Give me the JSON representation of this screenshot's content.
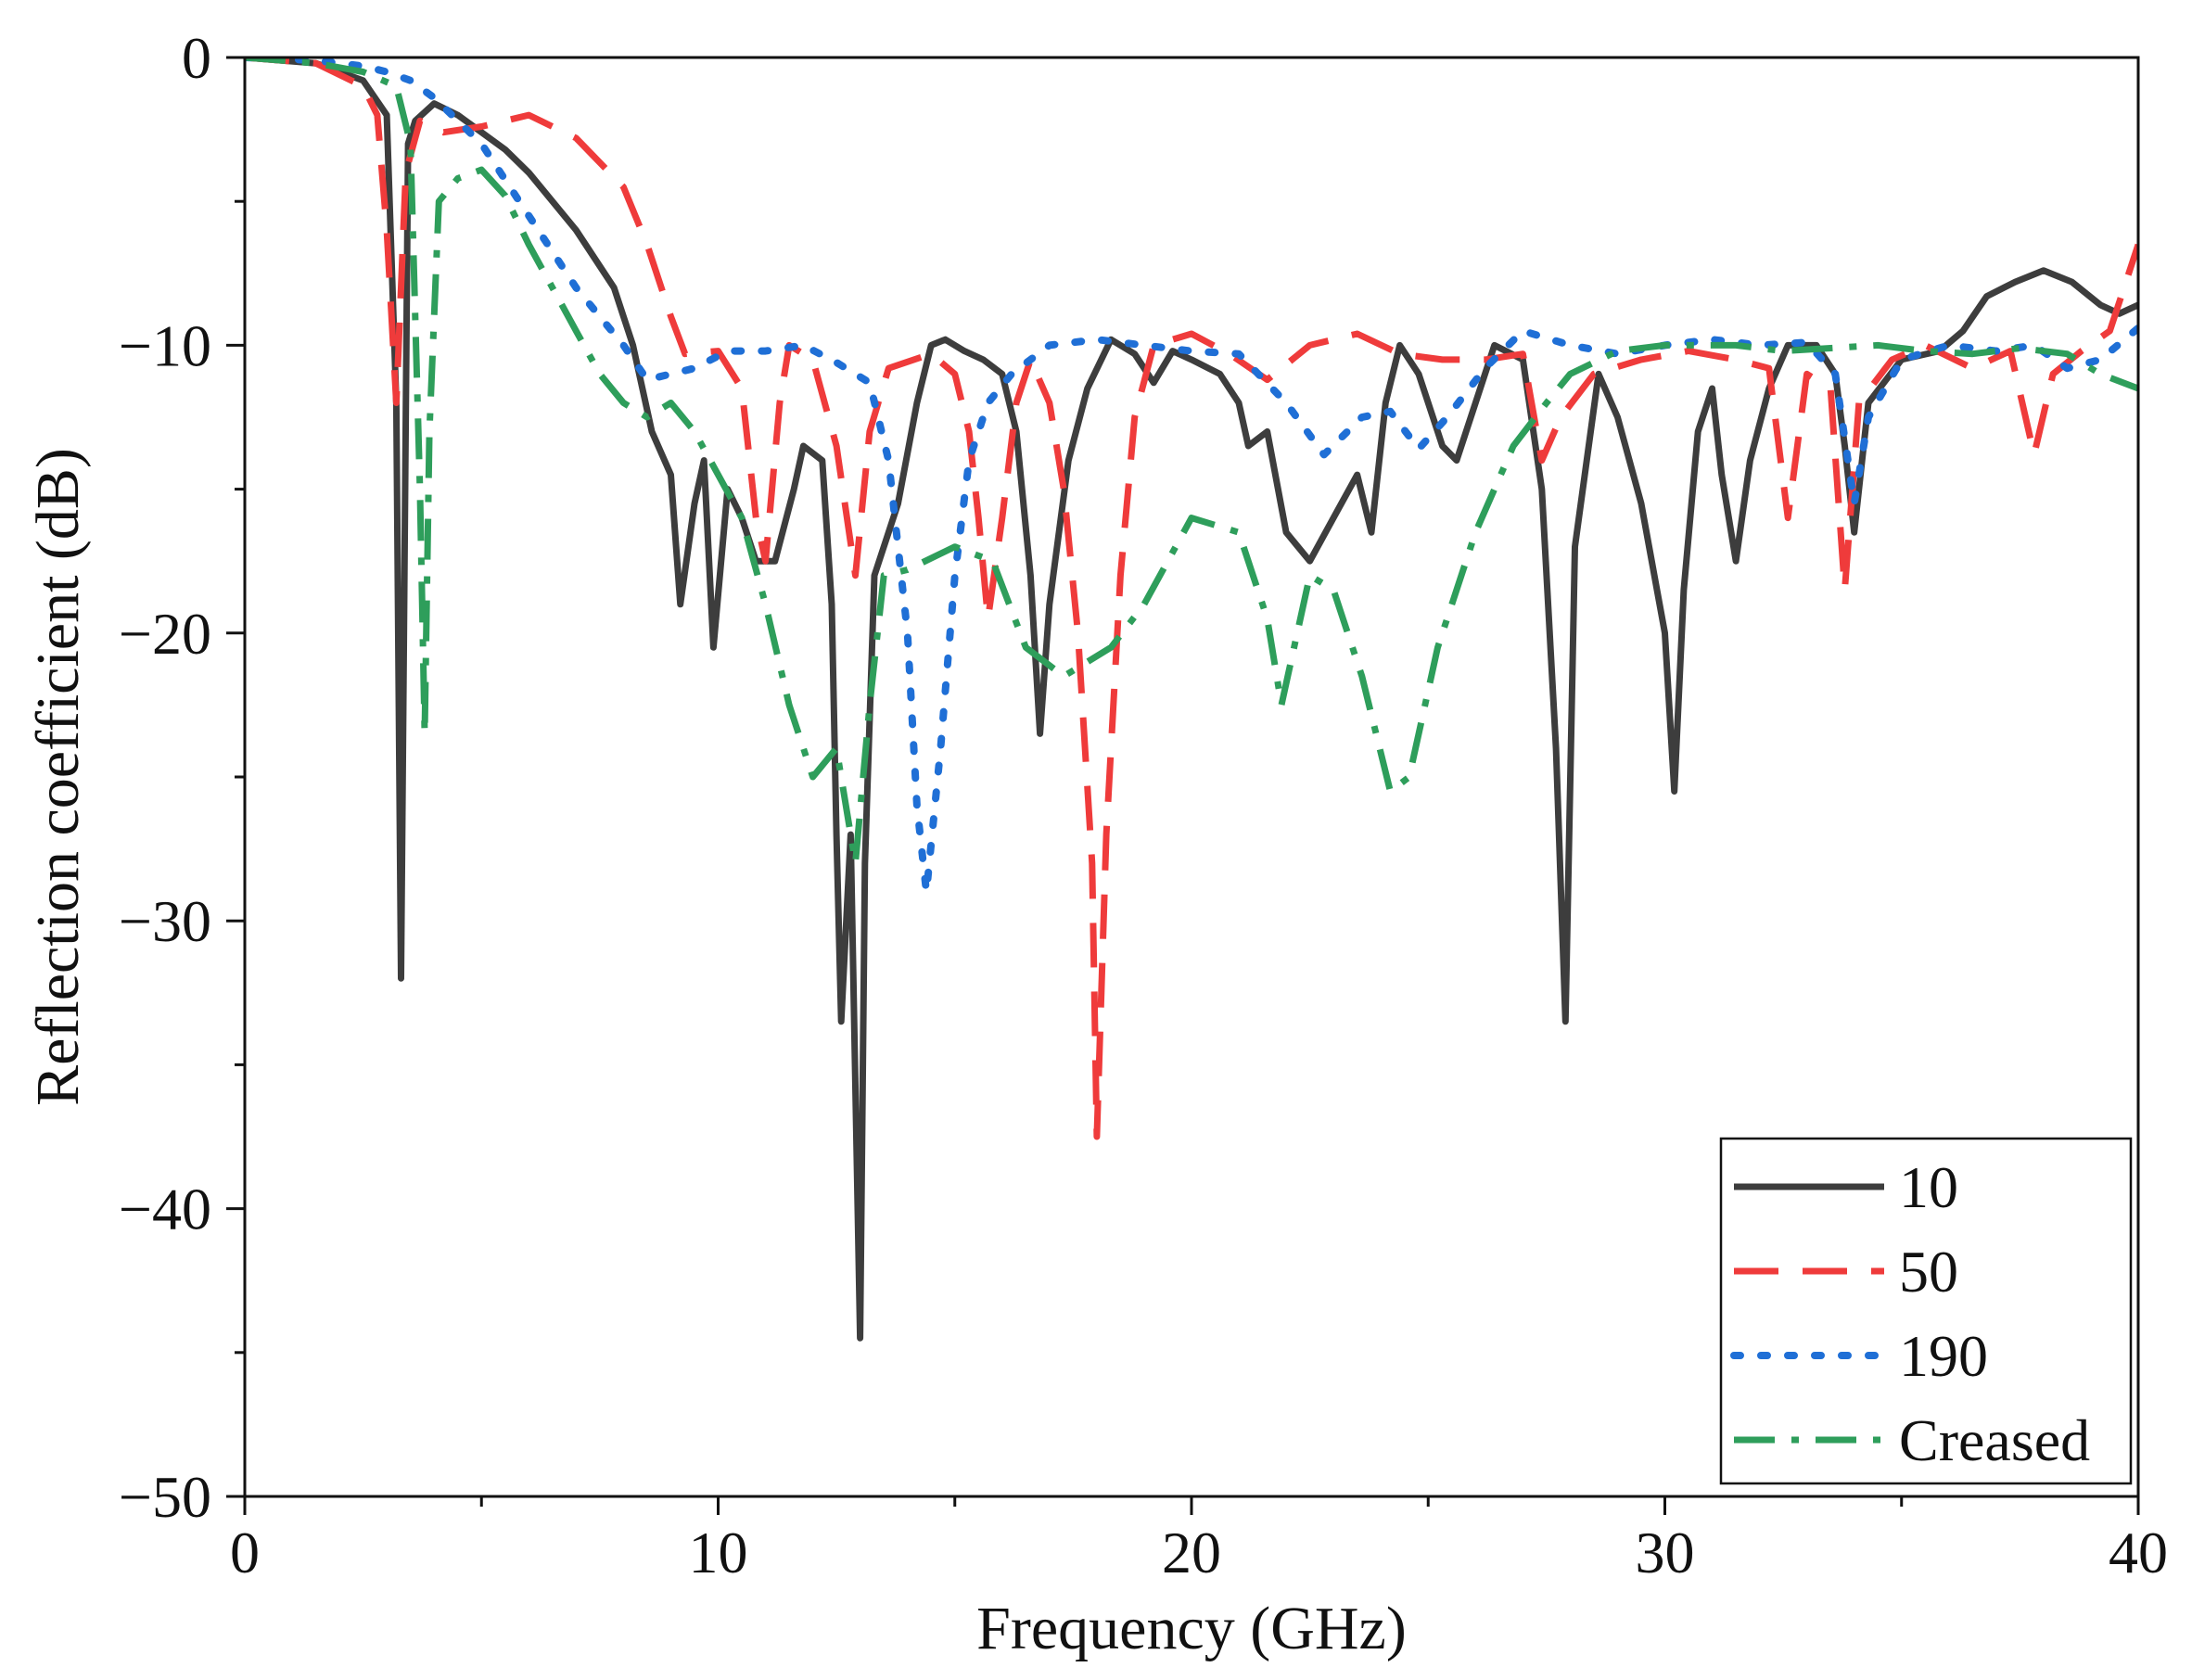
{
  "chart_data": {
    "type": "line",
    "title": "",
    "xlabel": "Frequency (GHz)",
    "ylabel": "Reflection coefficient (dB)",
    "xlim": [
      0,
      40
    ],
    "ylim": [
      -50,
      0
    ],
    "x_ticks": [
      0,
      10,
      20,
      30,
      40
    ],
    "x_tick_labels": [
      "0",
      "10",
      "20",
      "30",
      "40"
    ],
    "y_ticks": [
      0,
      -10,
      -20,
      -30,
      -40,
      -50
    ],
    "y_tick_labels": [
      "0",
      "−10",
      "−20",
      "−30",
      "−40",
      "−50"
    ],
    "grid": false,
    "legend_position": "bottom-right",
    "series": [
      {
        "name": "10",
        "color": "#3d3d3d",
        "style": "solid",
        "points": [
          [
            0,
            0
          ],
          [
            1.5,
            -0.2
          ],
          [
            2.5,
            -0.8
          ],
          [
            3.0,
            -2.0
          ],
          [
            3.2,
            -12
          ],
          [
            3.3,
            -32
          ],
          [
            3.45,
            -3
          ],
          [
            3.6,
            -2.2
          ],
          [
            4.0,
            -1.6
          ],
          [
            4.5,
            -2.0
          ],
          [
            5.0,
            -2.6
          ],
          [
            5.5,
            -3.2
          ],
          [
            6.0,
            -4.0
          ],
          [
            7.0,
            -6.0
          ],
          [
            7.8,
            -8.0
          ],
          [
            8.2,
            -10.0
          ],
          [
            8.6,
            -13.0
          ],
          [
            9.0,
            -14.5
          ],
          [
            9.2,
            -19.0
          ],
          [
            9.5,
            -15.5
          ],
          [
            9.7,
            -14.0
          ],
          [
            9.9,
            -20.5
          ],
          [
            10.2,
            -15.0
          ],
          [
            10.5,
            -16.0
          ],
          [
            10.8,
            -17.5
          ],
          [
            11.2,
            -17.5
          ],
          [
            11.6,
            -15.0
          ],
          [
            11.8,
            -13.5
          ],
          [
            12.2,
            -14.0
          ],
          [
            12.4,
            -19.0
          ],
          [
            12.5,
            -27.0
          ],
          [
            12.6,
            -33.5
          ],
          [
            12.8,
            -27.0
          ],
          [
            13.0,
            -44.5
          ],
          [
            13.1,
            -28.0
          ],
          [
            13.3,
            -18.0
          ],
          [
            13.8,
            -15.5
          ],
          [
            14.2,
            -12.0
          ],
          [
            14.5,
            -10.0
          ],
          [
            14.8,
            -9.8
          ],
          [
            15.2,
            -10.2
          ],
          [
            15.6,
            -10.5
          ],
          [
            16.0,
            -11.0
          ],
          [
            16.3,
            -13.0
          ],
          [
            16.6,
            -18.0
          ],
          [
            16.8,
            -23.5
          ],
          [
            17.0,
            -19.0
          ],
          [
            17.4,
            -14.0
          ],
          [
            17.8,
            -11.5
          ],
          [
            18.3,
            -9.8
          ],
          [
            18.8,
            -10.3
          ],
          [
            19.2,
            -11.3
          ],
          [
            19.6,
            -10.2
          ],
          [
            20.0,
            -10.5
          ],
          [
            20.6,
            -11.0
          ],
          [
            21.0,
            -12.0
          ],
          [
            21.2,
            -13.5
          ],
          [
            21.6,
            -13.0
          ],
          [
            22.0,
            -16.5
          ],
          [
            22.5,
            -17.5
          ],
          [
            23.0,
            -16.0
          ],
          [
            23.5,
            -14.5
          ],
          [
            23.8,
            -16.5
          ],
          [
            24.1,
            -12.0
          ],
          [
            24.4,
            -10.0
          ],
          [
            24.8,
            -11.0
          ],
          [
            25.3,
            -13.5
          ],
          [
            25.6,
            -14.0
          ],
          [
            26.0,
            -12.0
          ],
          [
            26.4,
            -10.0
          ],
          [
            27.0,
            -10.5
          ],
          [
            27.4,
            -15.0
          ],
          [
            27.7,
            -24.0
          ],
          [
            27.9,
            -33.5
          ],
          [
            28.1,
            -17.0
          ],
          [
            28.6,
            -11.0
          ],
          [
            29.0,
            -12.5
          ],
          [
            29.5,
            -15.5
          ],
          [
            30.0,
            -20.0
          ],
          [
            30.2,
            -25.5
          ],
          [
            30.4,
            -18.5
          ],
          [
            30.7,
            -13.0
          ],
          [
            31.0,
            -11.5
          ],
          [
            31.2,
            -14.5
          ],
          [
            31.5,
            -17.5
          ],
          [
            31.8,
            -14.0
          ],
          [
            32.2,
            -11.5
          ],
          [
            32.6,
            -10.0
          ],
          [
            33.2,
            -10.0
          ],
          [
            33.6,
            -11.0
          ],
          [
            33.8,
            -13.5
          ],
          [
            34.0,
            -16.5
          ],
          [
            34.3,
            -12.0
          ],
          [
            35.0,
            -10.5
          ],
          [
            35.8,
            -10.2
          ],
          [
            36.3,
            -9.5
          ],
          [
            36.8,
            -8.3
          ],
          [
            37.4,
            -7.8
          ],
          [
            38.0,
            -7.4
          ],
          [
            38.6,
            -7.8
          ],
          [
            39.2,
            -8.6
          ],
          [
            39.6,
            -8.9
          ],
          [
            40.0,
            -8.6
          ]
        ]
      },
      {
        "name": "50",
        "color": "#ef3b3b",
        "style": "dashed",
        "points": [
          [
            0,
            0
          ],
          [
            1.5,
            -0.2
          ],
          [
            2.5,
            -1.0
          ],
          [
            2.8,
            -2.0
          ],
          [
            3.0,
            -6.0
          ],
          [
            3.2,
            -12.0
          ],
          [
            3.4,
            -4.0
          ],
          [
            3.7,
            -2.2
          ],
          [
            4.2,
            -2.6
          ],
          [
            5.0,
            -2.4
          ],
          [
            6.0,
            -2.0
          ],
          [
            7.0,
            -2.8
          ],
          [
            8.0,
            -4.5
          ],
          [
            8.5,
            -6.5
          ],
          [
            9.0,
            -9.0
          ],
          [
            9.3,
            -10.3
          ],
          [
            10.0,
            -10.2
          ],
          [
            10.5,
            -11.5
          ],
          [
            10.8,
            -16.0
          ],
          [
            11.0,
            -17.5
          ],
          [
            11.3,
            -12.0
          ],
          [
            11.5,
            -10.0
          ],
          [
            12.0,
            -10.5
          ],
          [
            12.5,
            -13.5
          ],
          [
            12.9,
            -18.0
          ],
          [
            13.2,
            -13.0
          ],
          [
            13.6,
            -10.8
          ],
          [
            14.5,
            -10.3
          ],
          [
            15.0,
            -11.0
          ],
          [
            15.3,
            -13.0
          ],
          [
            15.5,
            -16.0
          ],
          [
            15.7,
            -19.5
          ],
          [
            16.0,
            -16.0
          ],
          [
            16.3,
            -12.0
          ],
          [
            16.6,
            -10.5
          ],
          [
            17.0,
            -12.0
          ],
          [
            17.3,
            -15.0
          ],
          [
            17.6,
            -20.0
          ],
          [
            17.9,
            -28.0
          ],
          [
            18.0,
            -37.5
          ],
          [
            18.2,
            -27.0
          ],
          [
            18.5,
            -18.0
          ],
          [
            18.8,
            -12.5
          ],
          [
            19.2,
            -10.0
          ],
          [
            20.0,
            -9.6
          ],
          [
            20.8,
            -10.3
          ],
          [
            21.6,
            -11.2
          ],
          [
            22.5,
            -10.0
          ],
          [
            23.5,
            -9.6
          ],
          [
            24.4,
            -10.3
          ],
          [
            25.3,
            -10.5
          ],
          [
            26.2,
            -10.5
          ],
          [
            27.0,
            -10.3
          ],
          [
            27.4,
            -14.0
          ],
          [
            27.8,
            -12.5
          ],
          [
            28.5,
            -11.0
          ],
          [
            29.5,
            -10.5
          ],
          [
            30.5,
            -10.2
          ],
          [
            31.5,
            -10.5
          ],
          [
            32.2,
            -10.8
          ],
          [
            32.6,
            -16.0
          ],
          [
            33.0,
            -11.0
          ],
          [
            33.5,
            -11.5
          ],
          [
            33.8,
            -18.5
          ],
          [
            34.1,
            -12.0
          ],
          [
            34.8,
            -10.5
          ],
          [
            35.5,
            -10.0
          ],
          [
            36.5,
            -10.8
          ],
          [
            37.3,
            -10.2
          ],
          [
            37.8,
            -13.8
          ],
          [
            38.2,
            -11.0
          ],
          [
            38.8,
            -10.2
          ],
          [
            39.4,
            -9.5
          ],
          [
            40.0,
            -6.5
          ]
        ]
      },
      {
        "name": "190",
        "color": "#1f6fd6",
        "style": "dotted",
        "points": [
          [
            0,
            0
          ],
          [
            1.5,
            -0.1
          ],
          [
            2.5,
            -0.3
          ],
          [
            3.0,
            -0.5
          ],
          [
            3.5,
            -0.8
          ],
          [
            4.0,
            -1.4
          ],
          [
            5.0,
            -3.0
          ],
          [
            6.0,
            -5.5
          ],
          [
            7.0,
            -8.0
          ],
          [
            8.0,
            -10.0
          ],
          [
            8.5,
            -11.2
          ],
          [
            9.5,
            -10.8
          ],
          [
            10.2,
            -10.2
          ],
          [
            11.0,
            -10.2
          ],
          [
            11.8,
            -10.0
          ],
          [
            12.5,
            -10.6
          ],
          [
            13.2,
            -11.3
          ],
          [
            13.6,
            -14.0
          ],
          [
            14.0,
            -20.0
          ],
          [
            14.2,
            -26.0
          ],
          [
            14.4,
            -29.0
          ],
          [
            14.7,
            -24.0
          ],
          [
            15.0,
            -18.0
          ],
          [
            15.3,
            -14.0
          ],
          [
            15.7,
            -12.0
          ],
          [
            16.2,
            -11.0
          ],
          [
            17.0,
            -10.0
          ],
          [
            18.0,
            -9.8
          ],
          [
            19.0,
            -10.0
          ],
          [
            20.0,
            -10.2
          ],
          [
            21.0,
            -10.3
          ],
          [
            22.0,
            -12.0
          ],
          [
            22.8,
            -13.8
          ],
          [
            23.6,
            -12.5
          ],
          [
            24.2,
            -12.3
          ],
          [
            24.8,
            -13.6
          ],
          [
            25.4,
            -12.5
          ],
          [
            26.2,
            -10.8
          ],
          [
            27.0,
            -9.5
          ],
          [
            28.0,
            -10.0
          ],
          [
            29.0,
            -10.3
          ],
          [
            30.0,
            -10.0
          ],
          [
            31.0,
            -9.8
          ],
          [
            32.0,
            -10.0
          ],
          [
            33.0,
            -9.9
          ],
          [
            33.6,
            -11.0
          ],
          [
            34.0,
            -15.5
          ],
          [
            34.3,
            -12.5
          ],
          [
            35.0,
            -10.5
          ],
          [
            36.0,
            -10.0
          ],
          [
            37.0,
            -10.2
          ],
          [
            37.8,
            -10.0
          ],
          [
            38.5,
            -10.8
          ],
          [
            39.2,
            -10.5
          ],
          [
            40.0,
            -9.4
          ]
        ]
      },
      {
        "name": "Creased",
        "color": "#2e9e5b",
        "style": "dashdot",
        "points": [
          [
            0,
            0
          ],
          [
            1.5,
            -0.2
          ],
          [
            2.5,
            -0.5
          ],
          [
            3.2,
            -1.0
          ],
          [
            3.5,
            -3.0
          ],
          [
            3.7,
            -15.0
          ],
          [
            3.8,
            -23.5
          ],
          [
            3.9,
            -13.0
          ],
          [
            4.1,
            -5.0
          ],
          [
            4.5,
            -4.2
          ],
          [
            5.0,
            -3.9
          ],
          [
            5.5,
            -4.8
          ],
          [
            6.0,
            -6.5
          ],
          [
            6.5,
            -8.0
          ],
          [
            7.0,
            -9.5
          ],
          [
            7.5,
            -11.0
          ],
          [
            8.0,
            -12.0
          ],
          [
            8.5,
            -12.5
          ],
          [
            9.0,
            -12.0
          ],
          [
            9.5,
            -13.0
          ],
          [
            10.0,
            -14.5
          ],
          [
            10.5,
            -16.0
          ],
          [
            11.0,
            -19.0
          ],
          [
            11.5,
            -22.5
          ],
          [
            12.0,
            -25.0
          ],
          [
            12.5,
            -24.0
          ],
          [
            12.9,
            -28.0
          ],
          [
            13.2,
            -22.5
          ],
          [
            13.5,
            -18.0
          ],
          [
            14.0,
            -17.8
          ],
          [
            15.0,
            -17.0
          ],
          [
            15.8,
            -17.5
          ],
          [
            16.5,
            -20.5
          ],
          [
            17.3,
            -21.5
          ],
          [
            18.3,
            -20.5
          ],
          [
            19.0,
            -19.0
          ],
          [
            20.0,
            -16.0
          ],
          [
            21.0,
            -16.5
          ],
          [
            21.6,
            -19.5
          ],
          [
            21.9,
            -22.5
          ],
          [
            22.5,
            -18.0
          ],
          [
            23.0,
            -18.5
          ],
          [
            23.6,
            -21.5
          ],
          [
            24.2,
            -25.5
          ],
          [
            24.6,
            -25.0
          ],
          [
            25.2,
            -20.5
          ],
          [
            26.0,
            -16.5
          ],
          [
            26.8,
            -13.5
          ],
          [
            27.5,
            -12.0
          ],
          [
            28.0,
            -11.0
          ],
          [
            29.0,
            -10.2
          ],
          [
            30.0,
            -10.0
          ],
          [
            31.5,
            -10.0
          ],
          [
            32.5,
            -10.2
          ],
          [
            33.5,
            -10.1
          ],
          [
            34.5,
            -10.0
          ],
          [
            35.5,
            -10.2
          ],
          [
            36.5,
            -10.3
          ],
          [
            37.5,
            -10.1
          ],
          [
            38.5,
            -10.3
          ],
          [
            39.2,
            -11.0
          ],
          [
            40.0,
            -11.5
          ]
        ]
      }
    ]
  }
}
